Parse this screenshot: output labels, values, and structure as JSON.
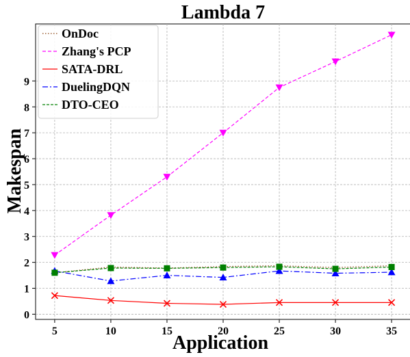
{
  "chart_data": {
    "type": "line",
    "title": "Lambda 7",
    "xlabel": "Application",
    "ylabel": "Makespan",
    "x": [
      5,
      10,
      15,
      20,
      25,
      30,
      35
    ],
    "xticks": [
      "5",
      "10",
      "15",
      "20",
      "25",
      "30",
      "35"
    ],
    "yticks": [
      "0",
      "1",
      "2",
      "3",
      "4",
      "5",
      "6",
      "7",
      "8",
      "9"
    ],
    "xlim": [
      3.3,
      36.7
    ],
    "ylim": [
      -0.2,
      11.2
    ],
    "grid": true,
    "legend_position": "top-left",
    "series": [
      {
        "name": "OnDoc",
        "values": [
          1.6,
          1.82,
          1.78,
          1.84,
          1.87,
          1.8,
          1.87
        ],
        "color": "#8b4513",
        "dash": "1.5,2.5",
        "marker": "none"
      },
      {
        "name": "Zhang's PCP",
        "values": [
          2.28,
          3.82,
          5.3,
          7.0,
          8.75,
          9.75,
          10.78
        ],
        "color": "#ff00ff",
        "dash": "5,3",
        "marker": "triangle-down"
      },
      {
        "name": "SATA-DRL",
        "values": [
          0.72,
          0.53,
          0.42,
          0.38,
          0.45,
          0.45,
          0.45
        ],
        "color": "#ff0000",
        "dash": "",
        "marker": "x"
      },
      {
        "name": "DuelingDQN",
        "values": [
          1.67,
          1.28,
          1.5,
          1.42,
          1.67,
          1.58,
          1.62
        ],
        "color": "#0000ff",
        "dash": "8,3,2,3",
        "marker": "triangle-up"
      },
      {
        "name": "DTO-CEO",
        "values": [
          1.6,
          1.78,
          1.77,
          1.8,
          1.83,
          1.75,
          1.82
        ],
        "color": "#008000",
        "dash": "4,2",
        "marker": "square"
      }
    ]
  }
}
